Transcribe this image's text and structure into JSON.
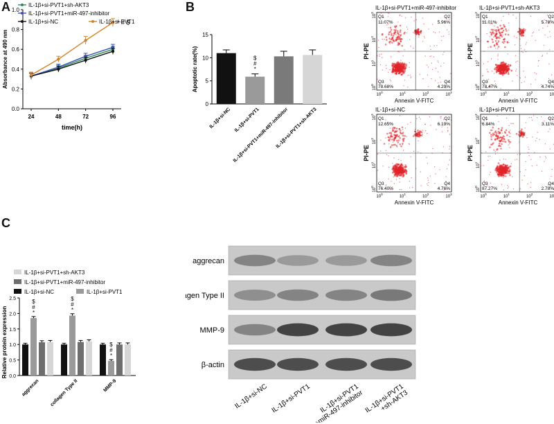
{
  "panels": {
    "a": "A",
    "b": "B",
    "c": "C"
  },
  "chart_data": [
    {
      "type": "line",
      "xlabel": "time(h)",
      "ylabel": "Absorbance at 490 nm",
      "x": [
        24,
        48,
        72,
        96
      ],
      "ylim": [
        0.0,
        1.0
      ],
      "yticks": [
        0.0,
        0.2,
        0.4,
        0.6,
        0.8,
        1.0
      ],
      "yticklabels": [
        "0.0",
        "0.2",
        "0.4",
        "0.6",
        "0.8",
        "1.0"
      ],
      "legend": "top-left",
      "annotation": "* # $",
      "series": [
        {
          "name": "IL-1β+si-PVT1+sh-AKT3",
          "color": "#2e8b57",
          "values": [
            0.33,
            0.41,
            0.51,
            0.6
          ],
          "errors": [
            0.03,
            0.03,
            0.03,
            0.03
          ]
        },
        {
          "name": "IL-1β+si-PVT1+miR-497-inhibitor",
          "color": "#3b4fb8",
          "values": [
            0.33,
            0.42,
            0.53,
            0.62
          ],
          "errors": [
            0.03,
            0.03,
            0.03,
            0.03
          ]
        },
        {
          "name": "IL-1β+si-NC",
          "color": "#111111",
          "values": [
            0.33,
            0.4,
            0.49,
            0.58
          ],
          "errors": [
            0.03,
            0.03,
            0.03,
            0.03
          ]
        },
        {
          "name": "IL-1β+si-PVT1",
          "color": "#d2842a",
          "values": [
            0.34,
            0.5,
            0.69,
            0.87
          ],
          "errors": [
            0.03,
            0.03,
            0.04,
            0.04
          ]
        }
      ]
    },
    {
      "type": "bar",
      "ylabel": "Apoptotic rate(%)",
      "ylim": [
        0,
        15
      ],
      "yticks": [
        0,
        5,
        10,
        15
      ],
      "yticklabels": [
        "0",
        "5",
        "10",
        "15"
      ],
      "categories": [
        "IL-1β+si-NC",
        "IL-1β+si-PVT1",
        "IL-1β+si-PVT1+miR-497-inhibitor",
        "IL-1β+si-PVT1+sh-AKT3"
      ],
      "values": [
        11.0,
        5.9,
        10.3,
        10.6
      ],
      "errors": [
        0.7,
        0.6,
        1.1,
        1.1
      ],
      "colors": [
        "#111111",
        "#9a9a9a",
        "#7a7a7a",
        "#d6d6d6"
      ],
      "annotations": [
        "",
        "$ # *",
        "",
        ""
      ]
    },
    {
      "type": "bar",
      "ylabel": "Relative protein expression",
      "ylim": [
        0.0,
        2.5
      ],
      "yticks": [
        0.0,
        0.5,
        1.0,
        1.5,
        2.0,
        2.5
      ],
      "yticklabels": [
        "0.0",
        "0.5",
        "1.0",
        "1.5",
        "2.0",
        "2.5"
      ],
      "categories": [
        "aggrecan",
        "collagen Type II",
        "MMP-9"
      ],
      "legend": "top-left",
      "series": [
        {
          "name": "IL-1β+si-NC",
          "color": "#111111",
          "values": [
            1.0,
            1.0,
            1.0
          ],
          "errors": [
            0.04,
            0.04,
            0.04
          ]
        },
        {
          "name": "IL-1β+si-PVT1",
          "color": "#9a9a9a",
          "values": [
            1.85,
            1.93,
            0.47
          ],
          "errors": [
            0.05,
            0.06,
            0.04
          ]
        },
        {
          "name": "IL-1β+si-PVT1+miR-497-inhibitor",
          "color": "#6e6e6e",
          "values": [
            1.07,
            1.08,
            1.0
          ],
          "errors": [
            0.05,
            0.05,
            0.05
          ]
        },
        {
          "name": "IL-1β+si-PVT1+sh-AKT3",
          "color": "#d6d6d6",
          "values": [
            1.08,
            1.1,
            1.0
          ],
          "errors": [
            0.05,
            0.05,
            0.05
          ]
        }
      ],
      "annotations": [
        "$ # *",
        "$ # *",
        "$ # *"
      ]
    }
  ],
  "flow": {
    "plots": [
      {
        "title": "IL-1β+si-PVT1+miR-497-inhibitor",
        "q1": "11.07%",
        "q2": "5.96%",
        "q3": "78.68%",
        "q4": "4.29%"
      },
      {
        "title": "IL-1β+si-PVT1+sh-AKT3",
        "q1": "11.01%",
        "q2": "5.78%",
        "q3": "78.47%",
        "q4": "4.74%"
      },
      {
        "title": "IL-1β+si-NC",
        "q1": "12.65%",
        "q2": "6.19%",
        "q3": "76.40%",
        "q4": "4.76%"
      },
      {
        "title": "IL-1β+si-PVT1",
        "q1": "6.84%",
        "q2": "3.11%",
        "q3": "87.27%",
        "q4": "2.78%"
      }
    ],
    "xlabel": "Annexin V-FITC",
    "ylabel": "PI-PE",
    "quadrants": {
      "q1": "Q1",
      "q2": "Q2",
      "q3": "Q3",
      "q4": "Q4"
    },
    "exponents": [
      "0",
      "1",
      "2",
      "3"
    ],
    "base": "10"
  },
  "blot": {
    "rows": [
      "aggrecan",
      "collagen Type II",
      "MMP-9",
      "β-actin"
    ],
    "lanes": [
      "IL-1β+si-NC",
      "IL-1β+si-PVT1",
      "IL-1β+si-PVT1\n+miR-497-inhibitor",
      "IL-1β+si-PVT1\n+sh-AKT3"
    ],
    "band_intensity": [
      [
        0.55,
        0.45,
        0.45,
        0.55
      ],
      [
        0.5,
        0.55,
        0.55,
        0.6
      ],
      [
        0.55,
        0.85,
        0.85,
        0.85
      ],
      [
        0.8,
        0.8,
        0.8,
        0.8
      ]
    ]
  }
}
